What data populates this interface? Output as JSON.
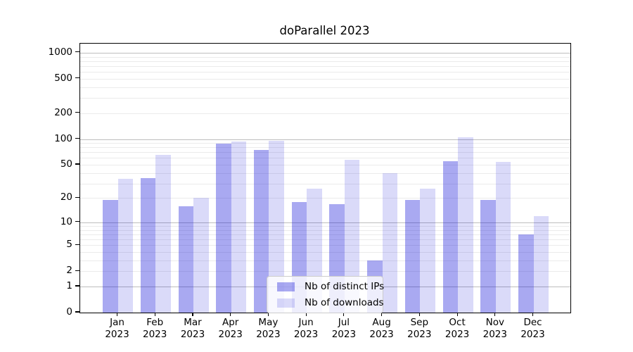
{
  "chart_data": {
    "type": "bar",
    "title": "doParallel 2023",
    "categories": [
      "Jan",
      "Feb",
      "Mar",
      "Apr",
      "May",
      "Jun",
      "Jul",
      "Aug",
      "Sep",
      "Oct",
      "Nov",
      "Dec"
    ],
    "category_year": "2023",
    "series": [
      {
        "name": "Nb of distinct IPs",
        "color": "rgba(10,10,215,0.35)",
        "values": [
          19,
          35,
          16,
          88,
          74,
          18,
          17,
          3,
          19,
          55,
          19,
          7
        ]
      },
      {
        "name": "Nb of downloads",
        "color": "rgba(10,10,215,0.15)",
        "values": [
          34,
          65,
          20,
          93,
          96,
          26,
          57,
          40,
          26,
          105,
          54,
          12
        ]
      }
    ],
    "xlabel": "",
    "ylabel": "",
    "y_scale": "log1p",
    "y_ticks": [
      0,
      1,
      2,
      5,
      10,
      20,
      50,
      100,
      200,
      500,
      1000
    ],
    "ylim": [
      0,
      1280
    ],
    "grid": true,
    "legend_position": "lower center",
    "colors": {
      "grid_major": "#bdbdbd",
      "grid_minor": "#ebebeb",
      "spine": "#000000",
      "background": "#ffffff",
      "text": "#000000"
    }
  }
}
